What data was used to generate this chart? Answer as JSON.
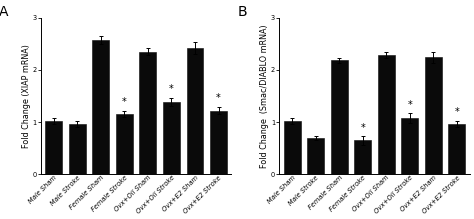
{
  "panel_A": {
    "title": "A",
    "ylabel": "Fold Change (XIAP mRNA)",
    "categories": [
      "Male Sham",
      "Male Stroke",
      "Female Sham",
      "Female Stroke",
      "Ovx+Oil Sham",
      "Ovx+Oil Stroke",
      "Ovx+E2 Sham",
      "Ovx+E2 Stroke"
    ],
    "values": [
      1.02,
      0.97,
      2.57,
      1.15,
      2.35,
      1.38,
      2.42,
      1.22
    ],
    "errors": [
      0.05,
      0.06,
      0.07,
      0.06,
      0.07,
      0.08,
      0.12,
      0.07
    ],
    "star": [
      false,
      false,
      false,
      true,
      false,
      true,
      false,
      true
    ],
    "ylim": [
      0,
      3
    ],
    "yticks": [
      0,
      1,
      2,
      3
    ]
  },
  "panel_B": {
    "title": "B",
    "ylabel": "Fold Change  (Smac/DIABLO mRNA)",
    "categories": [
      "Male Sham",
      "Male Stroke",
      "Female Sham",
      "Female Stroke",
      "Ovx+Oil Sham",
      "Ovx+Oil Stroke",
      "Ovx+E2 Sham",
      "Ovx+E2 Stroke"
    ],
    "values": [
      1.02,
      0.7,
      2.18,
      0.65,
      2.28,
      1.08,
      2.24,
      0.97
    ],
    "errors": [
      0.05,
      0.04,
      0.05,
      0.08,
      0.06,
      0.09,
      0.1,
      0.06
    ],
    "star": [
      false,
      false,
      false,
      true,
      false,
      true,
      false,
      true
    ],
    "ylim": [
      0,
      3
    ],
    "yticks": [
      0,
      1,
      2,
      3
    ]
  },
  "bar_color": "#0a0a0a",
  "bar_width": 0.72,
  "bar_edgecolor": "#0a0a0a",
  "tick_label_fontsize": 4.8,
  "ylabel_fontsize": 5.8,
  "panel_label_fontsize": 10,
  "star_fontsize": 7,
  "figure_width": 4.74,
  "figure_height": 2.19,
  "dpi": 100
}
